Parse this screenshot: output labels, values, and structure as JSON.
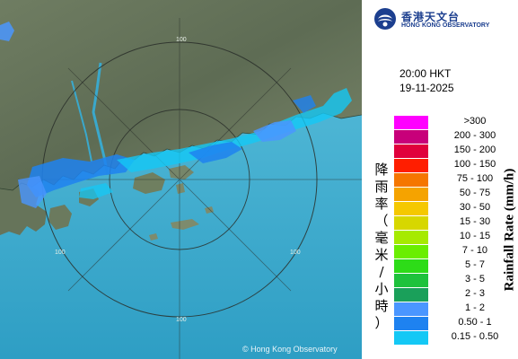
{
  "map": {
    "copyright": "© Hong Kong Observatory",
    "range_labels": [
      "100",
      "100",
      "100",
      "100"
    ]
  },
  "header": {
    "logo_chinese": "香港天文台",
    "logo_english": "HONG KONG OBSERVATORY",
    "time": "20:00 HKT",
    "date": "19-11-2025"
  },
  "legend": {
    "title_chinese": [
      "降",
      "雨",
      "率",
      "（",
      "毫",
      "米",
      "/",
      "小",
      "時",
      "）"
    ],
    "title_english": "Rainfall Rate (mm/h)",
    "items": [
      {
        "label": ">300",
        "color": "#ff00ff"
      },
      {
        "label": "200 - 300",
        "color": "#c8007a"
      },
      {
        "label": "150 - 200",
        "color": "#e0003c"
      },
      {
        "label": "100 - 150",
        "color": "#ff1e00"
      },
      {
        "label": "75 - 100",
        "color": "#f57600"
      },
      {
        "label": "50 - 75",
        "color": "#f5a300"
      },
      {
        "label": "30 - 50",
        "color": "#f5c800"
      },
      {
        "label": "15 - 30",
        "color": "#d7d700"
      },
      {
        "label": "10 - 15",
        "color": "#a6ea00"
      },
      {
        "label": "7 - 10",
        "color": "#6aee00"
      },
      {
        "label": "5 - 7",
        "color": "#2ddc18"
      },
      {
        "label": "3 - 5",
        "color": "#1ec23c"
      },
      {
        "label": "2 - 3",
        "color": "#1aa05a"
      },
      {
        "label": "1 - 2",
        "color": "#4a96ff"
      },
      {
        "label": "0.50 - 1",
        "color": "#1e82f0"
      },
      {
        "label": "0.15 - 0.50",
        "color": "#14c8f5"
      }
    ]
  }
}
